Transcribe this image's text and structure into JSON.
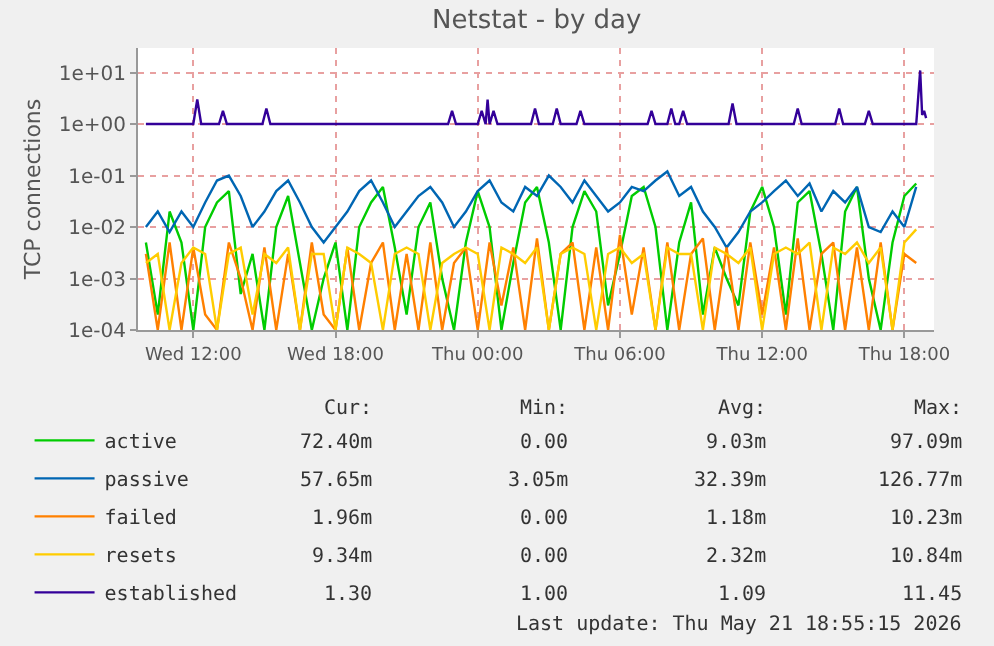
{
  "chart_data": {
    "type": "line",
    "title": "Netstat - by day",
    "ylabel": "TCP connections",
    "log": true,
    "grid": true,
    "legend": "bottom left",
    "x": [
      "2026-05-20T10:00",
      "2026-05-20T10:30",
      "2026-05-20T11:00",
      "2026-05-20T11:30",
      "2026-05-20T12:00",
      "2026-05-20T12:30",
      "2026-05-20T13:00",
      "2026-05-20T13:30",
      "2026-05-20T14:00",
      "2026-05-20T14:30",
      "2026-05-20T15:00",
      "2026-05-20T15:30",
      "2026-05-20T16:00",
      "2026-05-20T16:30",
      "2026-05-20T17:00",
      "2026-05-20T17:30",
      "2026-05-20T18:00",
      "2026-05-20T18:30",
      "2026-05-20T19:00",
      "2026-05-20T19:30",
      "2026-05-20T20:00",
      "2026-05-20T20:30",
      "2026-05-20T21:00",
      "2026-05-20T21:30",
      "2026-05-20T22:00",
      "2026-05-20T22:30",
      "2026-05-20T23:00",
      "2026-05-20T23:30",
      "2026-05-21T00:00",
      "2026-05-21T00:30",
      "2026-05-21T01:00",
      "2026-05-21T01:30",
      "2026-05-21T02:00",
      "2026-05-21T02:30",
      "2026-05-21T03:00",
      "2026-05-21T03:30",
      "2026-05-21T04:00",
      "2026-05-21T04:30",
      "2026-05-21T05:00",
      "2026-05-21T05:30",
      "2026-05-21T06:00",
      "2026-05-21T06:30",
      "2026-05-21T07:00",
      "2026-05-21T07:30",
      "2026-05-21T08:00",
      "2026-05-21T08:30",
      "2026-05-21T09:00",
      "2026-05-21T09:30",
      "2026-05-21T10:00",
      "2026-05-21T10:30",
      "2026-05-21T11:00",
      "2026-05-21T11:30",
      "2026-05-21T12:00",
      "2026-05-21T12:30",
      "2026-05-21T13:00",
      "2026-05-21T13:30",
      "2026-05-21T14:00",
      "2026-05-21T14:30",
      "2026-05-21T15:00",
      "2026-05-21T15:30",
      "2026-05-21T16:00",
      "2026-05-21T16:30",
      "2026-05-21T17:00",
      "2026-05-21T17:30",
      "2026-05-21T18:00",
      "2026-05-21T18:30"
    ],
    "xlim": [
      "2026-05-20T09:40",
      "2026-05-21T19:15"
    ],
    "xticks": [
      {
        "value": "2026-05-20T12:00",
        "label": "Wed 12:00"
      },
      {
        "value": "2026-05-20T18:00",
        "label": "Wed 18:00"
      },
      {
        "value": "2026-05-21T00:00",
        "label": "Thu 00:00"
      },
      {
        "value": "2026-05-21T06:00",
        "label": "Thu 06:00"
      },
      {
        "value": "2026-05-21T12:00",
        "label": "Thu 12:00"
      },
      {
        "value": "2026-05-21T18:00",
        "label": "Thu 18:00"
      }
    ],
    "ylim": [
      0.0001,
      30
    ],
    "yticks": [
      {
        "value": 0.0001,
        "label": "1e-04"
      },
      {
        "value": 0.001,
        "label": "1e-03"
      },
      {
        "value": 0.01,
        "label": "1e-02"
      },
      {
        "value": 0.1,
        "label": "1e-01"
      },
      {
        "value": 1,
        "label": "1e+00"
      },
      {
        "value": 10,
        "label": "1e+01"
      }
    ],
    "series": [
      {
        "name": "active",
        "color": "#00cc00",
        "values": [
          0.005,
          0.0002,
          0.02,
          0.005,
          0.0001,
          0.01,
          0.03,
          0.05,
          0.0005,
          0.003,
          0.0001,
          0.01,
          0.04,
          0.002,
          0.0001,
          0.001,
          0.005,
          0.0001,
          0.01,
          0.03,
          0.06,
          0.004,
          0.0002,
          0.01,
          0.03,
          0.001,
          0.0001,
          0.005,
          0.05,
          0.01,
          0.0001,
          0.002,
          0.03,
          0.06,
          0.005,
          0.0001,
          0.01,
          0.05,
          0.02,
          0.0003,
          0.003,
          0.04,
          0.06,
          0.01,
          0.0001,
          0.005,
          0.03,
          0.0002,
          0.004,
          0.001,
          0.0003,
          0.02,
          0.06,
          0.01,
          0.0002,
          0.03,
          0.05,
          0.003,
          0.0001,
          0.02,
          0.06,
          0.001,
          0.0001,
          0.005,
          0.04,
          0.07
        ]
      },
      {
        "name": "passive",
        "color": "#0066b3",
        "values": [
          0.01,
          0.02,
          0.008,
          0.02,
          0.01,
          0.03,
          0.08,
          0.1,
          0.04,
          0.01,
          0.02,
          0.05,
          0.08,
          0.03,
          0.01,
          0.005,
          0.01,
          0.02,
          0.05,
          0.08,
          0.03,
          0.01,
          0.02,
          0.04,
          0.06,
          0.03,
          0.01,
          0.02,
          0.05,
          0.08,
          0.03,
          0.02,
          0.06,
          0.04,
          0.1,
          0.06,
          0.03,
          0.08,
          0.04,
          0.02,
          0.03,
          0.06,
          0.05,
          0.08,
          0.12,
          0.04,
          0.06,
          0.02,
          0.01,
          0.004,
          0.008,
          0.02,
          0.03,
          0.05,
          0.08,
          0.04,
          0.07,
          0.02,
          0.05,
          0.03,
          0.06,
          0.01,
          0.008,
          0.02,
          0.01,
          0.06
        ]
      },
      {
        "name": "failed",
        "color": "#ff8000",
        "values": [
          0.003,
          0.0001,
          0.005,
          0.0001,
          0.004,
          0.0002,
          0.0001,
          0.005,
          0.001,
          0.0001,
          0.004,
          0.0001,
          0.003,
          0.0001,
          0.005,
          0.0002,
          0.0001,
          0.004,
          0.0001,
          0.002,
          0.005,
          0.0001,
          0.003,
          0.0001,
          0.005,
          0.0001,
          0.002,
          0.004,
          0.0001,
          0.005,
          0.0003,
          0.004,
          0.0001,
          0.006,
          0.0001,
          0.003,
          0.005,
          0.0001,
          0.004,
          0.0001,
          0.007,
          0.0002,
          0.004,
          0.0001,
          0.005,
          0.0001,
          0.003,
          0.006,
          0.0001,
          0.004,
          0.0001,
          0.005,
          0.0002,
          0.004,
          0.0001,
          0.006,
          0.0001,
          0.003,
          0.005,
          0.0001,
          0.004,
          0.0001,
          0.005,
          0.0001,
          0.003,
          0.002
        ]
      },
      {
        "name": "resets",
        "color": "#ffcc00",
        "values": [
          0.002,
          0.003,
          0.0001,
          0.002,
          0.004,
          0.003,
          0.0001,
          0.003,
          0.004,
          0.0002,
          0.003,
          0.002,
          0.004,
          0.0001,
          0.003,
          0.003,
          0.0001,
          0.004,
          0.003,
          0.002,
          0.0001,
          0.003,
          0.004,
          0.003,
          0.0001,
          0.002,
          0.003,
          0.004,
          0.003,
          0.0001,
          0.004,
          0.003,
          0.002,
          0.004,
          0.0001,
          0.003,
          0.004,
          0.003,
          0.0001,
          0.003,
          0.004,
          0.002,
          0.003,
          0.0001,
          0.004,
          0.003,
          0.003,
          0.0001,
          0.004,
          0.003,
          0.002,
          0.004,
          0.0001,
          0.003,
          0.004,
          0.003,
          0.005,
          0.0001,
          0.004,
          0.003,
          0.005,
          0.002,
          0.004,
          0.0001,
          0.005,
          0.009
        ]
      },
      {
        "name": "established",
        "color": "#330099",
        "x": [
          "2026-05-20T10:00",
          "2026-05-20T12:00",
          "2026-05-20T12:10",
          "2026-05-20T12:20",
          "2026-05-20T13:05",
          "2026-05-20T13:15",
          "2026-05-20T13:25",
          "2026-05-20T14:55",
          "2026-05-20T15:05",
          "2026-05-20T15:15",
          "2026-05-20T22:45",
          "2026-05-20T22:55",
          "2026-05-20T23:05",
          "2026-05-21T00:00",
          "2026-05-21T00:10",
          "2026-05-21T00:20",
          "2026-05-21T00:25",
          "2026-05-21T00:30",
          "2026-05-21T00:40",
          "2026-05-21T00:50",
          "2026-05-21T02:15",
          "2026-05-21T02:25",
          "2026-05-21T02:35",
          "2026-05-21T03:10",
          "2026-05-21T03:20",
          "2026-05-21T03:30",
          "2026-05-21T04:10",
          "2026-05-21T04:20",
          "2026-05-21T04:30",
          "2026-05-21T07:10",
          "2026-05-21T07:20",
          "2026-05-21T07:30",
          "2026-05-21T08:00",
          "2026-05-21T08:10",
          "2026-05-21T08:20",
          "2026-05-21T08:30",
          "2026-05-21T08:40",
          "2026-05-21T08:50",
          "2026-05-21T10:35",
          "2026-05-21T10:45",
          "2026-05-21T10:55",
          "2026-05-21T13:20",
          "2026-05-21T13:30",
          "2026-05-21T13:40",
          "2026-05-21T15:05",
          "2026-05-21T15:15",
          "2026-05-21T15:25",
          "2026-05-21T16:20",
          "2026-05-21T16:30",
          "2026-05-21T16:40",
          "2026-05-21T18:30",
          "2026-05-21T18:40",
          "2026-05-21T18:45",
          "2026-05-21T18:50",
          "2026-05-21T18:55"
        ],
        "values": [
          1,
          1,
          3,
          1,
          1,
          1.8,
          1,
          1,
          2,
          1,
          1,
          1.8,
          1,
          1,
          1.8,
          1,
          3,
          1,
          1.8,
          1,
          1,
          2,
          1,
          1,
          2,
          1,
          1,
          1.8,
          1,
          1,
          1.8,
          1,
          1,
          2,
          1,
          1,
          1.8,
          1,
          1,
          2.5,
          1,
          1,
          2,
          1,
          1,
          2,
          1,
          1,
          1.8,
          1,
          1,
          11,
          1.5,
          1.8,
          1.3
        ]
      }
    ],
    "annotations": [
      "Cur:",
      "Min:",
      "Avg:",
      "Max:",
      "72.40m",
      "0.00",
      "9.03m",
      "97.09m",
      "57.65m",
      "3.05m",
      "32.39m",
      "126.77m",
      "1.96m",
      "0.00",
      "1.18m",
      "10.23m",
      "9.34m",
      "0.00",
      "2.32m",
      "10.84m",
      "1.30",
      "1.00",
      "1.09",
      "11.45",
      "Last update: Thu May 21 18:55:15 2026"
    ]
  }
}
